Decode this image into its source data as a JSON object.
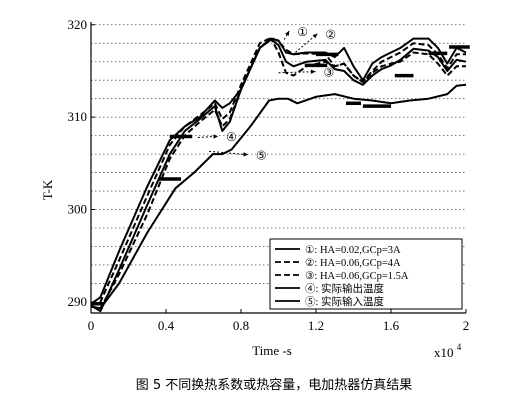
{
  "chart_data": {
    "type": "line",
    "title": "",
    "xlabel": "Time -s",
    "ylabel": "T-K",
    "x_multiplier_label": "x10",
    "x_multiplier_exp": "4",
    "xlim": [
      0,
      2
    ],
    "ylim": [
      288.8,
      320.3
    ],
    "xticks": [
      0,
      0.4,
      0.8,
      1.2,
      1.6,
      2
    ],
    "xtick_labels": [
      "0",
      "0.4",
      "0.8",
      "1.2",
      "1.6",
      "2"
    ],
    "yticks": [
      290,
      300,
      310,
      320
    ],
    "ytick_labels": [
      "290",
      "300",
      "310",
      "320"
    ],
    "grid": "horizontal dashed",
    "legend_position": "bottom-right",
    "series": [
      {
        "name": "①: HA=0.02,GCp=3A",
        "style": "solid",
        "x": [
          0,
          0.05,
          0.15,
          0.3,
          0.42,
          0.5,
          0.58,
          0.66,
          0.7,
          0.74,
          0.8,
          0.9,
          0.96,
          1.0,
          1.04,
          1.08,
          1.15,
          1.25,
          1.3,
          1.35,
          1.4,
          1.45,
          1.5,
          1.55,
          1.6,
          1.65,
          1.72,
          1.8,
          1.85,
          1.9,
          1.95,
          2.0
        ],
        "y": [
          289.8,
          290.5,
          295.5,
          302.5,
          307.5,
          309.0,
          310.0,
          311.8,
          311.0,
          311.5,
          313.0,
          317.5,
          318.5,
          318.3,
          317.0,
          316.8,
          317.0,
          317.0,
          316.5,
          317.5,
          315.5,
          314.0,
          315.8,
          316.5,
          317.0,
          317.5,
          318.5,
          318.5,
          317.5,
          315.8,
          317.5,
          317.0
        ]
      },
      {
        "name": "②: HA=0.06,GCp=4A",
        "style": "dashed",
        "x": [
          0,
          0.05,
          0.15,
          0.3,
          0.42,
          0.5,
          0.58,
          0.66,
          0.7,
          0.74,
          0.8,
          0.9,
          0.96,
          1.0,
          1.04,
          1.08,
          1.15,
          1.25,
          1.3,
          1.35,
          1.4,
          1.45,
          1.5,
          1.55,
          1.6,
          1.65,
          1.72,
          1.8,
          1.85,
          1.9,
          1.95,
          2.0
        ],
        "y": [
          289.7,
          290.0,
          294.5,
          301.5,
          307.0,
          309.0,
          310.2,
          311.5,
          309.8,
          310.5,
          313.5,
          318.0,
          318.6,
          318.2,
          317.3,
          316.8,
          316.9,
          316.8,
          315.5,
          315.8,
          314.5,
          313.8,
          315.0,
          316.0,
          316.5,
          317.0,
          318.0,
          317.8,
          316.8,
          315.3,
          316.8,
          316.8
        ]
      },
      {
        "name": "③: HA=0.06,GCp=1.5A",
        "style": "dashed",
        "x": [
          0,
          0.05,
          0.15,
          0.3,
          0.42,
          0.5,
          0.58,
          0.66,
          0.7,
          0.74,
          0.8,
          0.9,
          0.96,
          1.0,
          1.04,
          1.08,
          1.15,
          1.25,
          1.3,
          1.35,
          1.4,
          1.45,
          1.5,
          1.55,
          1.6,
          1.65,
          1.72,
          1.8,
          1.85,
          1.9,
          1.95,
          2.0
        ],
        "y": [
          289.5,
          289.3,
          293.0,
          299.5,
          305.5,
          308.0,
          309.5,
          310.8,
          309.0,
          309.8,
          313.0,
          317.5,
          318.5,
          317.0,
          314.8,
          314.5,
          315.5,
          316.0,
          315.5,
          315.8,
          314.5,
          313.8,
          314.8,
          315.5,
          315.8,
          316.0,
          317.0,
          316.8,
          315.8,
          314.5,
          315.5,
          315.5
        ]
      },
      {
        "name": "④: 实际输出温度",
        "style": "solid",
        "x": [
          0,
          0.05,
          0.15,
          0.3,
          0.42,
          0.5,
          0.58,
          0.66,
          0.7,
          0.74,
          0.8,
          0.9,
          0.96,
          1.0,
          1.04,
          1.08,
          1.15,
          1.25,
          1.3,
          1.35,
          1.4,
          1.45,
          1.5,
          1.55,
          1.6,
          1.65,
          1.72,
          1.8,
          1.85,
          1.9,
          1.95,
          2.0
        ],
        "y": [
          289.6,
          289.0,
          293.5,
          300.5,
          306.0,
          308.5,
          309.8,
          311.2,
          308.5,
          309.5,
          313.0,
          317.5,
          318.4,
          317.8,
          316.0,
          315.5,
          316.0,
          316.2,
          315.2,
          315.0,
          314.0,
          313.5,
          314.5,
          315.2,
          315.6,
          316.2,
          317.4,
          317.2,
          316.5,
          315.0,
          316.2,
          316.0
        ]
      },
      {
        "name": "⑤: 实际输入温度",
        "style": "solid",
        "x": [
          0,
          0.05,
          0.15,
          0.3,
          0.45,
          0.55,
          0.65,
          0.7,
          0.75,
          0.85,
          0.95,
          1.0,
          1.05,
          1.1,
          1.2,
          1.3,
          1.4,
          1.5,
          1.6,
          1.7,
          1.8,
          1.9,
          1.95,
          2.0
        ],
        "y": [
          289.5,
          289.3,
          292.0,
          297.5,
          302.3,
          304.0,
          306.0,
          306.0,
          306.5,
          309.0,
          311.8,
          312.0,
          312.0,
          311.5,
          312.2,
          312.5,
          312.0,
          311.8,
          311.5,
          311.8,
          312.0,
          312.5,
          313.4,
          313.5
        ]
      }
    ],
    "step_segments": [
      {
        "x": [
          0.36,
          0.48
        ],
        "y": 303.3
      },
      {
        "x": [
          0.42,
          0.54
        ],
        "y": 307.9
      },
      {
        "x": [
          0.0,
          0.07
        ],
        "y": 289.8
      },
      {
        "x": [
          1.14,
          1.26
        ],
        "y": 315.6
      },
      {
        "x": [
          1.2,
          1.32
        ],
        "y": 316.8
      },
      {
        "x": [
          1.36,
          1.44
        ],
        "y": 311.5
      },
      {
        "x": [
          1.45,
          1.6
        ],
        "y": 311.2
      },
      {
        "x": [
          1.62,
          1.72
        ],
        "y": 314.5
      },
      {
        "x": [
          1.8,
          1.9
        ],
        "y": 316.9
      },
      {
        "x": [
          1.91,
          2.02
        ],
        "y": 317.6
      }
    ],
    "callouts": [
      {
        "label": "①",
        "x": 1.03,
        "y": 318.4,
        "tx": 1.1,
        "ty": 318.9
      },
      {
        "label": "②",
        "x": 1.09,
        "y": 317.0,
        "tx": 1.25,
        "ty": 318.6
      },
      {
        "label": "③",
        "x": 1.0,
        "y": 314.8,
        "tx": 1.24,
        "ty": 314.5
      },
      {
        "label": "④",
        "x": 0.57,
        "y": 307.8,
        "tx": 0.72,
        "ty": 307.5
      },
      {
        "label": "⑤",
        "x": 0.63,
        "y": 306.3,
        "tx": 0.88,
        "ty": 305.5
      }
    ]
  },
  "caption": "图 5    不同换热系数或热容量，电加热器仿真结果"
}
